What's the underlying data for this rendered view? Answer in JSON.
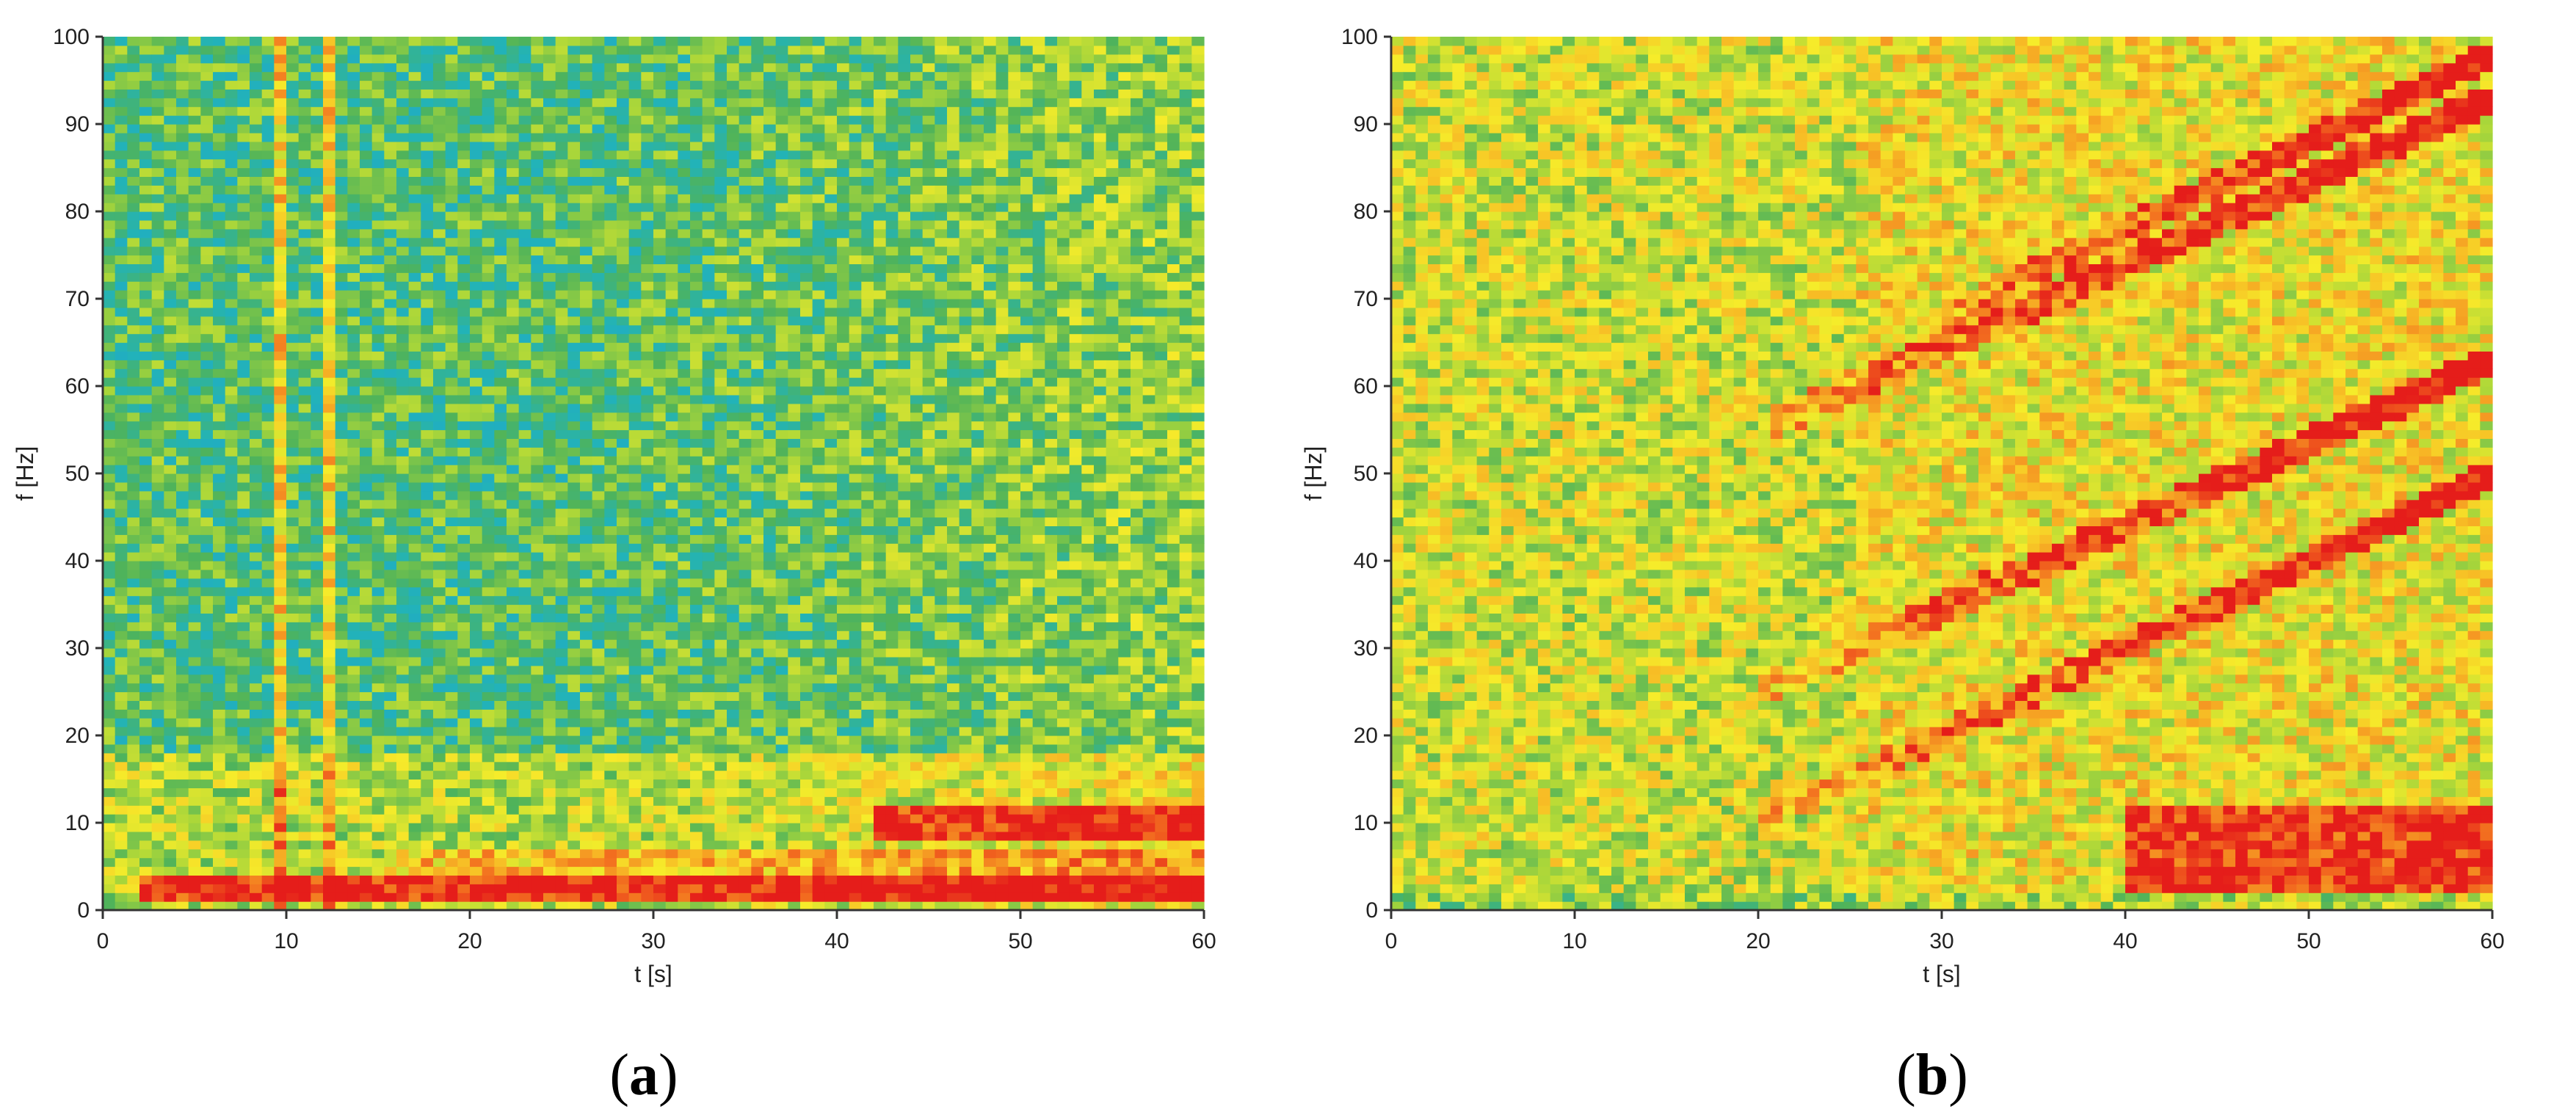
{
  "chart_data": [
    {
      "panel": "(a)",
      "type": "heatmap",
      "title": "",
      "xlabel": "t [s]",
      "ylabel": "f [Hz]",
      "xlim": [
        0,
        60
      ],
      "ylim": [
        0,
        100
      ],
      "x_ticks": [
        0,
        10,
        20,
        30,
        40,
        50,
        60
      ],
      "y_ticks": [
        0,
        10,
        20,
        30,
        40,
        50,
        60,
        70,
        80,
        90,
        100
      ],
      "colormap": [
        "#0b3fa8",
        "#1f9fd8",
        "#22b3b8",
        "#4fb35a",
        "#a9d63a",
        "#f6ec2a",
        "#f7b825",
        "#f26a1f",
        "#e51d1a"
      ],
      "grid": "off",
      "legend": "none",
      "description_features": [
        {
          "feature": "strong low-frequency band",
          "f_hz": [
            1,
            4
          ],
          "t_s": [
            2,
            60
          ],
          "level": "high (red)"
        },
        {
          "feature": "band near 10 Hz increasing after 40 s",
          "f_hz": [
            8,
            12
          ],
          "t_s": [
            42,
            60
          ],
          "level": "high (red)"
        },
        {
          "feature": "vertical narrowband artefacts",
          "t_s": [
            9.5,
            12.5
          ],
          "f_hz": [
            0,
            100
          ],
          "level": "medium (yellow)"
        },
        {
          "feature": "background",
          "level": "low to medium (blue-green)"
        }
      ]
    },
    {
      "panel": "(b)",
      "type": "heatmap",
      "title": "",
      "xlabel": "t [s]",
      "ylabel": "f [Hz]",
      "xlim": [
        0,
        60
      ],
      "ylim": [
        0,
        100
      ],
      "x_ticks": [
        0,
        10,
        20,
        30,
        40,
        50,
        60
      ],
      "y_ticks": [
        0,
        10,
        20,
        30,
        40,
        50,
        60,
        70,
        80,
        90,
        100
      ],
      "colormap": [
        "#0b3fa8",
        "#1f9fd8",
        "#22b3b8",
        "#4fb35a",
        "#a9d63a",
        "#f6ec2a",
        "#f7b825",
        "#f26a1f",
        "#e51d1a"
      ],
      "grid": "off",
      "legend": "none",
      "description_features": [
        {
          "feature": "rising harmonic line 1",
          "points": [
            [
              20,
              10
            ],
            [
              60,
              50
            ]
          ]
        },
        {
          "feature": "rising harmonic line 2",
          "points": [
            [
              20,
              25
            ],
            [
              60,
              63
            ]
          ]
        },
        {
          "feature": "rising harmonic line 3",
          "points": [
            [
              20,
              55
            ],
            [
              60,
              93
            ]
          ]
        },
        {
          "feature": "strong low-frequency energy",
          "f_hz": [
            2,
            12
          ],
          "t_s": [
            40,
            60
          ],
          "level": "high (red)"
        },
        {
          "feature": "background",
          "level": "medium (yellow-orange)"
        }
      ]
    }
  ],
  "labels": {
    "panel_a": "a",
    "panel_b": "b"
  }
}
